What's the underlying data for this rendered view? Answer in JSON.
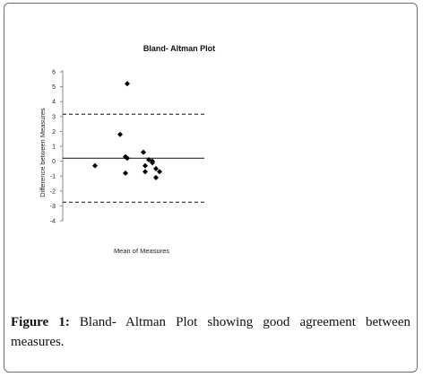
{
  "chart_data": {
    "type": "scatter",
    "title": "Bland- Altman Plot",
    "xlabel": "Mean of Measures",
    "ylabel": "Difference between Measures",
    "ylim": [
      -4,
      6
    ],
    "y_ticks": [
      6,
      5,
      4,
      3,
      2,
      1,
      0,
      -1,
      -2,
      -3,
      -4
    ],
    "x_ticks_shown": false,
    "xlim": [
      0,
      10
    ],
    "grid": false,
    "legend": "none",
    "marker": "diamond",
    "marker_color": "#000000",
    "points": [
      {
        "x": 1.8,
        "y": -0.3
      },
      {
        "x": 3.2,
        "y": 1.8
      },
      {
        "x": 3.6,
        "y": 5.2
      },
      {
        "x": 3.5,
        "y": 0.3
      },
      {
        "x": 3.6,
        "y": 0.2
      },
      {
        "x": 3.5,
        "y": -0.8
      },
      {
        "x": 4.5,
        "y": 0.6
      },
      {
        "x": 4.6,
        "y": -0.3
      },
      {
        "x": 4.6,
        "y": -0.7
      },
      {
        "x": 4.8,
        "y": 0.1
      },
      {
        "x": 5.0,
        "y": -0.1
      },
      {
        "x": 5.0,
        "y": 0.0
      },
      {
        "x": 5.2,
        "y": -0.5
      },
      {
        "x": 5.4,
        "y": -0.7
      },
      {
        "x": 5.2,
        "y": -1.1
      }
    ],
    "reference_lines": [
      {
        "kind": "mean",
        "y": 0.2,
        "style": "solid"
      },
      {
        "kind": "upper_limit",
        "y": 3.15,
        "style": "dashed"
      },
      {
        "kind": "lower_limit",
        "y": -2.75,
        "style": "dashed"
      }
    ]
  },
  "caption": {
    "label": "Figure 1:",
    "text": " Bland- Altman Plot showing good agreement between measures."
  }
}
